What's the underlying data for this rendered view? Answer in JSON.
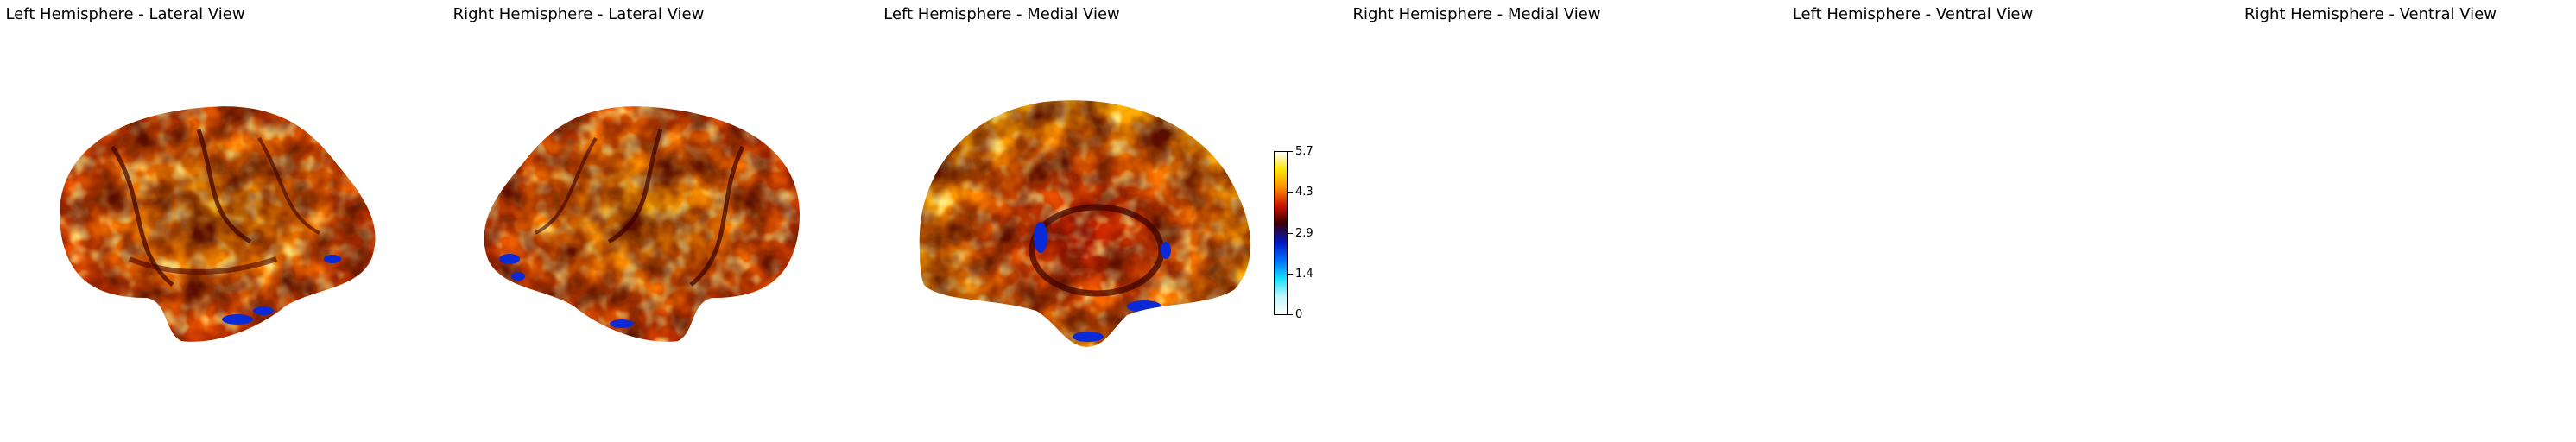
{
  "panels": [
    {
      "title": "Left Hemisphere - Lateral View",
      "shape": "lateral-left"
    },
    {
      "title": "Right Hemisphere - Lateral View",
      "shape": "lateral-right"
    },
    {
      "title": "Left Hemisphere - Medial View",
      "shape": "medial-left"
    },
    {
      "title": "Right Hemisphere - Medial View",
      "shape": "medial-right"
    },
    {
      "title": "Left Hemisphere - Ventral View",
      "shape": "ventral-left"
    },
    {
      "title": "Right Hemisphere - Ventral View",
      "shape": "ventral-right"
    }
  ],
  "colorbar": {
    "ticks": [
      "5.7",
      "4.3",
      "2.9",
      "1.4",
      "0"
    ],
    "colors": [
      "#ffffff",
      "#ffe600",
      "#ff8c00",
      "#cc1400",
      "#3a0000",
      "#0018c8",
      "#0070ff",
      "#16e0ff",
      "#bff6ff",
      "#ffffff"
    ]
  }
}
